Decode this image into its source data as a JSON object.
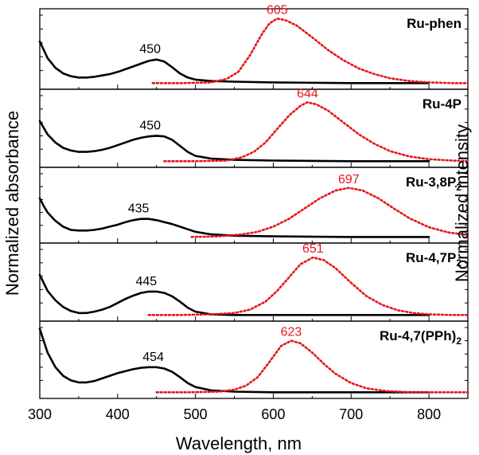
{
  "chart_data": {
    "type": "line",
    "xlabel": "Wavelength, nm",
    "ylabel_left": "Normalized absorbance",
    "ylabel_right": "Normalized intensity",
    "xlim": [
      300,
      850
    ],
    "xticks": [
      "300",
      "400",
      "500",
      "600",
      "700",
      "800"
    ],
    "colors": {
      "absorbance": "#000000",
      "emission": "#e8141b"
    },
    "panels": [
      {
        "label": "Ru-phen",
        "label_main": "Ru-phen",
        "label_sub": "",
        "label_tail": "",
        "abs_peak_label": "450",
        "abs_peak_x": 450,
        "em_peak_label": "605",
        "em_peak_x": 605,
        "absorbance": {
          "x": [
            300,
            305,
            310,
            320,
            330,
            340,
            350,
            360,
            370,
            380,
            390,
            400,
            410,
            420,
            430,
            440,
            450,
            460,
            470,
            480,
            490,
            500,
            520,
            550,
            600,
            700,
            800
          ],
          "y": [
            0.62,
            0.5,
            0.38,
            0.24,
            0.16,
            0.12,
            0.1,
            0.1,
            0.11,
            0.13,
            0.15,
            0.18,
            0.22,
            0.26,
            0.3,
            0.34,
            0.36,
            0.33,
            0.25,
            0.16,
            0.1,
            0.07,
            0.05,
            0.04,
            0.03,
            0.02,
            0.02
          ]
        },
        "emission": {
          "x": [
            445,
            480,
            520,
            540,
            555,
            570,
            585,
            595,
            605,
            615,
            630,
            650,
            670,
            690,
            710,
            730,
            750,
            775,
            800,
            830,
            850
          ],
          "y": [
            0.02,
            0.02,
            0.03,
            0.08,
            0.18,
            0.42,
            0.72,
            0.88,
            0.95,
            0.93,
            0.85,
            0.68,
            0.5,
            0.35,
            0.23,
            0.15,
            0.09,
            0.05,
            0.03,
            0.02,
            0.02
          ]
        }
      },
      {
        "label": "Ru-4P",
        "label_main": "Ru-4P",
        "label_sub": "",
        "label_tail": "",
        "abs_peak_label": "450",
        "abs_peak_x": 450,
        "em_peak_label": "644",
        "em_peak_x": 644,
        "absorbance": {
          "x": [
            300,
            305,
            310,
            320,
            330,
            340,
            350,
            360,
            370,
            380,
            390,
            400,
            410,
            420,
            430,
            440,
            450,
            460,
            470,
            480,
            490,
            500,
            520,
            550,
            600,
            700,
            800
          ],
          "y": [
            0.62,
            0.52,
            0.42,
            0.3,
            0.22,
            0.18,
            0.16,
            0.16,
            0.17,
            0.19,
            0.22,
            0.26,
            0.3,
            0.34,
            0.37,
            0.39,
            0.4,
            0.39,
            0.34,
            0.25,
            0.16,
            0.1,
            0.06,
            0.04,
            0.03,
            0.02,
            0.02
          ]
        },
        "emission": {
          "x": [
            460,
            500,
            540,
            560,
            575,
            590,
            605,
            620,
            635,
            644,
            655,
            670,
            690,
            710,
            730,
            750,
            775,
            800,
            830,
            850
          ],
          "y": [
            0.02,
            0.02,
            0.03,
            0.08,
            0.16,
            0.3,
            0.5,
            0.7,
            0.85,
            0.9,
            0.87,
            0.78,
            0.6,
            0.42,
            0.28,
            0.17,
            0.09,
            0.05,
            0.03,
            0.02
          ]
        }
      },
      {
        "label": "Ru-3,8P2",
        "label_main": "Ru-3,8P",
        "label_sub": "2",
        "label_tail": "",
        "abs_peak_label": "435",
        "abs_peak_x": 435,
        "em_peak_label": "697",
        "em_peak_x": 697,
        "absorbance": {
          "x": [
            300,
            305,
            310,
            320,
            330,
            340,
            350,
            360,
            370,
            380,
            390,
            400,
            410,
            420,
            430,
            440,
            450,
            460,
            470,
            480,
            490,
            500,
            520,
            550,
            600,
            700,
            800
          ],
          "y": [
            0.62,
            0.5,
            0.4,
            0.27,
            0.18,
            0.13,
            0.12,
            0.12,
            0.13,
            0.15,
            0.18,
            0.21,
            0.25,
            0.28,
            0.3,
            0.3,
            0.28,
            0.25,
            0.22,
            0.18,
            0.14,
            0.1,
            0.06,
            0.04,
            0.03,
            0.02,
            0.02
          ]
        },
        "emission": {
          "x": [
            495,
            530,
            560,
            580,
            600,
            620,
            640,
            660,
            680,
            697,
            715,
            735,
            755,
            775,
            800,
            825,
            850
          ],
          "y": [
            0.02,
            0.03,
            0.06,
            0.1,
            0.18,
            0.3,
            0.46,
            0.62,
            0.74,
            0.78,
            0.74,
            0.62,
            0.46,
            0.31,
            0.17,
            0.09,
            0.05
          ]
        }
      },
      {
        "label": "Ru-4,7P2",
        "label_main": "Ru-4,7P",
        "label_sub": "2",
        "label_tail": "",
        "abs_peak_label": "445",
        "abs_peak_x": 445,
        "em_peak_label": "651",
        "em_peak_x": 651,
        "absorbance": {
          "x": [
            300,
            305,
            310,
            320,
            330,
            340,
            350,
            360,
            370,
            380,
            390,
            400,
            410,
            420,
            430,
            440,
            450,
            460,
            470,
            480,
            490,
            500,
            520,
            550,
            600,
            700,
            800
          ],
          "y": [
            0.62,
            0.5,
            0.38,
            0.24,
            0.14,
            0.08,
            0.05,
            0.05,
            0.07,
            0.1,
            0.14,
            0.2,
            0.26,
            0.31,
            0.35,
            0.37,
            0.37,
            0.35,
            0.3,
            0.22,
            0.13,
            0.07,
            0.03,
            0.02,
            0.02,
            0.02,
            0.02
          ]
        },
        "emission": {
          "x": [
            440,
            480,
            520,
            550,
            570,
            590,
            605,
            620,
            635,
            651,
            665,
            680,
            700,
            720,
            740,
            760,
            780,
            800,
            830,
            850
          ],
          "y": [
            0.02,
            0.02,
            0.03,
            0.05,
            0.1,
            0.22,
            0.38,
            0.58,
            0.78,
            0.88,
            0.84,
            0.72,
            0.5,
            0.3,
            0.17,
            0.09,
            0.05,
            0.03,
            0.02,
            0.02
          ]
        }
      },
      {
        "label": "Ru-4,7(PPh)2",
        "label_main": "Ru-4,7(PPh)",
        "label_sub": "2",
        "label_tail": "",
        "abs_peak_label": "454",
        "abs_peak_x": 454,
        "em_peak_label": "623",
        "em_peak_x": 623,
        "absorbance": {
          "x": [
            300,
            305,
            310,
            320,
            330,
            340,
            350,
            360,
            370,
            380,
            390,
            400,
            410,
            420,
            430,
            440,
            450,
            460,
            470,
            480,
            490,
            500,
            520,
            550,
            600,
            700,
            800
          ],
          "y": [
            0.98,
            0.8,
            0.62,
            0.4,
            0.27,
            0.2,
            0.17,
            0.17,
            0.19,
            0.23,
            0.27,
            0.31,
            0.34,
            0.37,
            0.39,
            0.4,
            0.4,
            0.38,
            0.33,
            0.25,
            0.16,
            0.1,
            0.05,
            0.03,
            0.02,
            0.02,
            0.02
          ]
        },
        "emission": {
          "x": [
            450,
            490,
            530,
            550,
            565,
            580,
            595,
            610,
            623,
            635,
            650,
            665,
            680,
            700,
            720,
            745,
            775,
            800,
            830,
            850
          ],
          "y": [
            0.02,
            0.02,
            0.03,
            0.06,
            0.12,
            0.25,
            0.48,
            0.72,
            0.8,
            0.76,
            0.62,
            0.45,
            0.3,
            0.16,
            0.08,
            0.04,
            0.02,
            0.02,
            0.02,
            0.02
          ]
        }
      }
    ]
  }
}
